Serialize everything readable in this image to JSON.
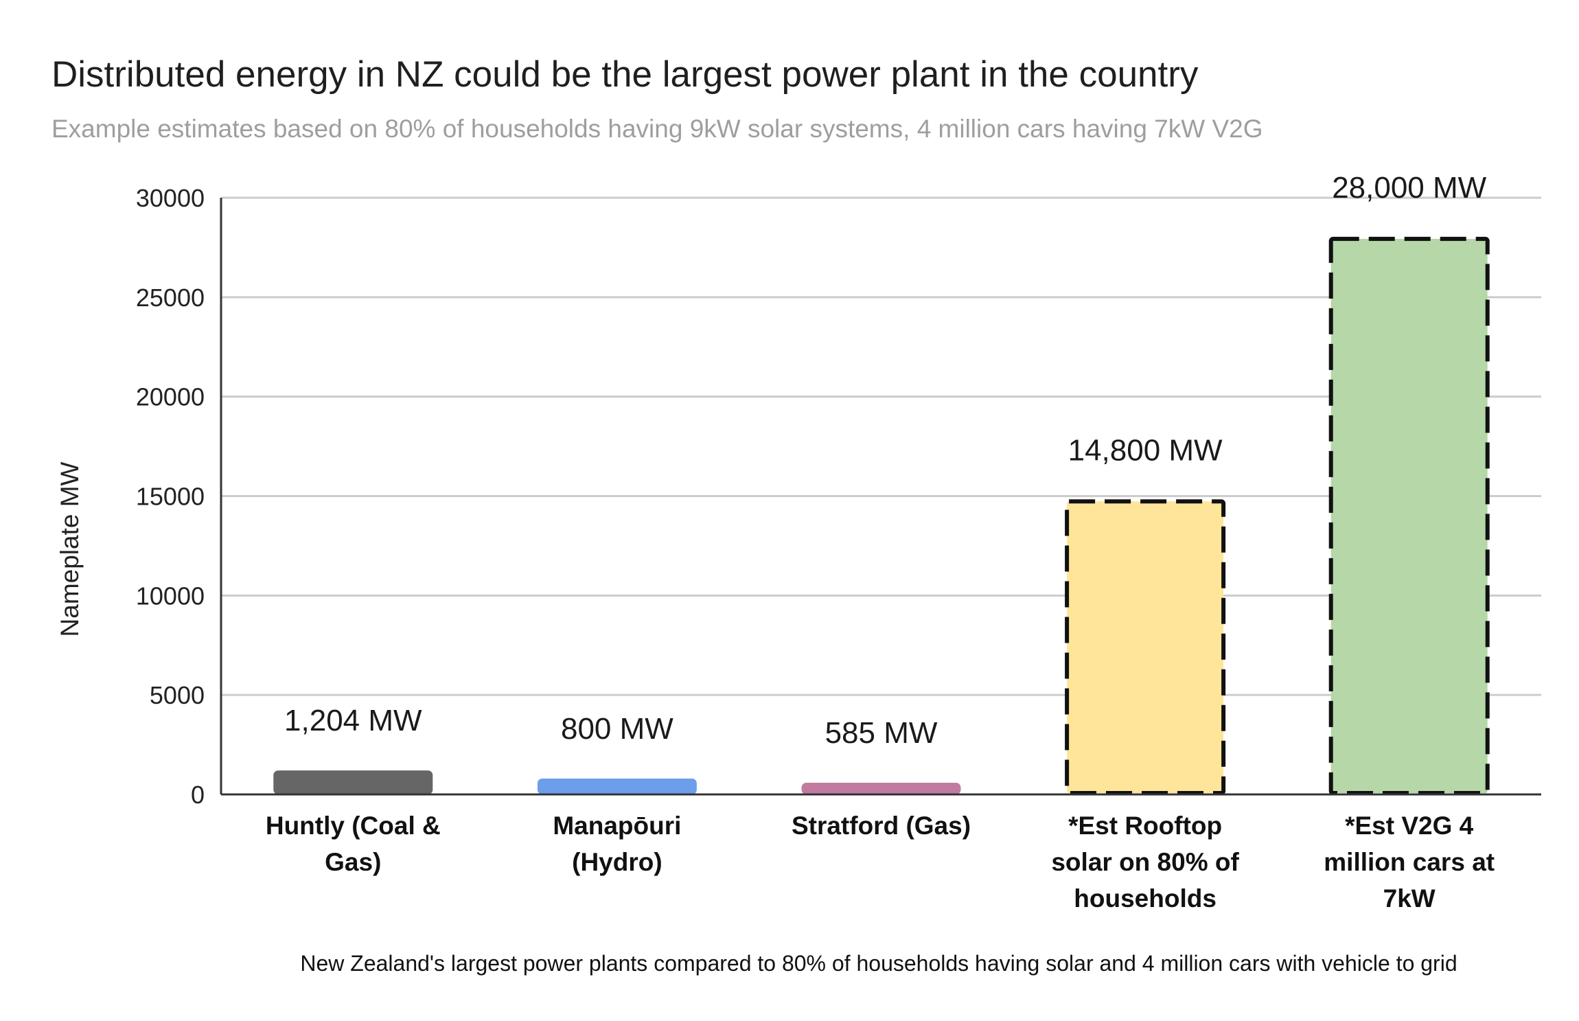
{
  "chart_data": {
    "type": "bar",
    "title": "Distributed energy in NZ could be the largest power plant in the country",
    "subtitle": "Example estimates based on 80% of households having 9kW solar systems, 4 million cars having 7kW V2G",
    "ylabel": "Nameplate MW",
    "xlabel": "",
    "ylim": [
      0,
      30000
    ],
    "yticks": [
      "0",
      "5000",
      "10000",
      "15000",
      "20000",
      "25000",
      "30000"
    ],
    "grid": true,
    "categories": [
      [
        "Huntly (Coal &",
        "Gas)"
      ],
      [
        "Manapōuri",
        "(Hydro)"
      ],
      [
        "Stratford (Gas)"
      ],
      [
        "*Est Rooftop",
        "solar on 80% of",
        "households"
      ],
      [
        "*Est V2G 4",
        "million cars at",
        "7kW"
      ]
    ],
    "values": [
      1204,
      800,
      585,
      14800,
      28000
    ],
    "data_labels": [
      "1,204 MW",
      "800 MW",
      "585 MW",
      "14,800 MW",
      "28,000 MW"
    ],
    "colors": [
      "#666666",
      "#6d9eeb",
      "#c27ba0",
      "#ffe599",
      "#b6d7a8"
    ],
    "dashed": [
      false,
      false,
      false,
      true,
      true
    ],
    "footnote": "New Zealand's largest power plants compared to 80% of households having solar and 4 million cars with vehicle to grid"
  }
}
